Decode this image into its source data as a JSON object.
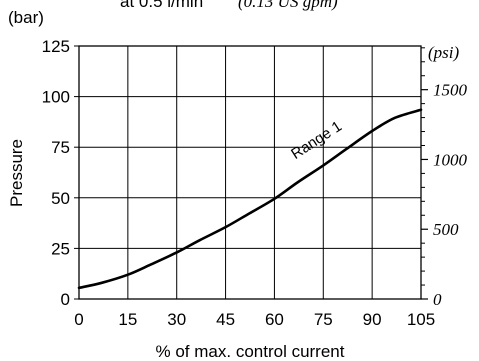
{
  "chart_data": {
    "type": "line",
    "title_main": "at 0.5 l/min",
    "title_italic": "(0.13 US gpm)",
    "xlabel": "% of max. control current",
    "ylabel": "Pressure",
    "y_unit_left": "(bar)",
    "y_unit_right": "(psi)",
    "xlim": [
      0,
      105
    ],
    "ylim": [
      0,
      125
    ],
    "x_ticks": [
      0,
      15,
      30,
      45,
      60,
      75,
      90,
      105
    ],
    "y_ticks": [
      0,
      25,
      50,
      75,
      100,
      125
    ],
    "y2_ticks": [
      0,
      500,
      1000,
      1500
    ],
    "y2_ticks_scale_bar_per_unit": 0.0689476,
    "grid": true,
    "series": [
      {
        "name": "Range 1",
        "x": [
          0,
          7,
          15,
          22,
          30,
          37,
          45,
          52,
          60,
          67,
          75,
          82,
          90,
          97,
          105
        ],
        "y": [
          5.5,
          8,
          12,
          17,
          23,
          29,
          35.5,
          42,
          49.5,
          57.5,
          66,
          74,
          83,
          89.5,
          93.5
        ]
      }
    ]
  }
}
